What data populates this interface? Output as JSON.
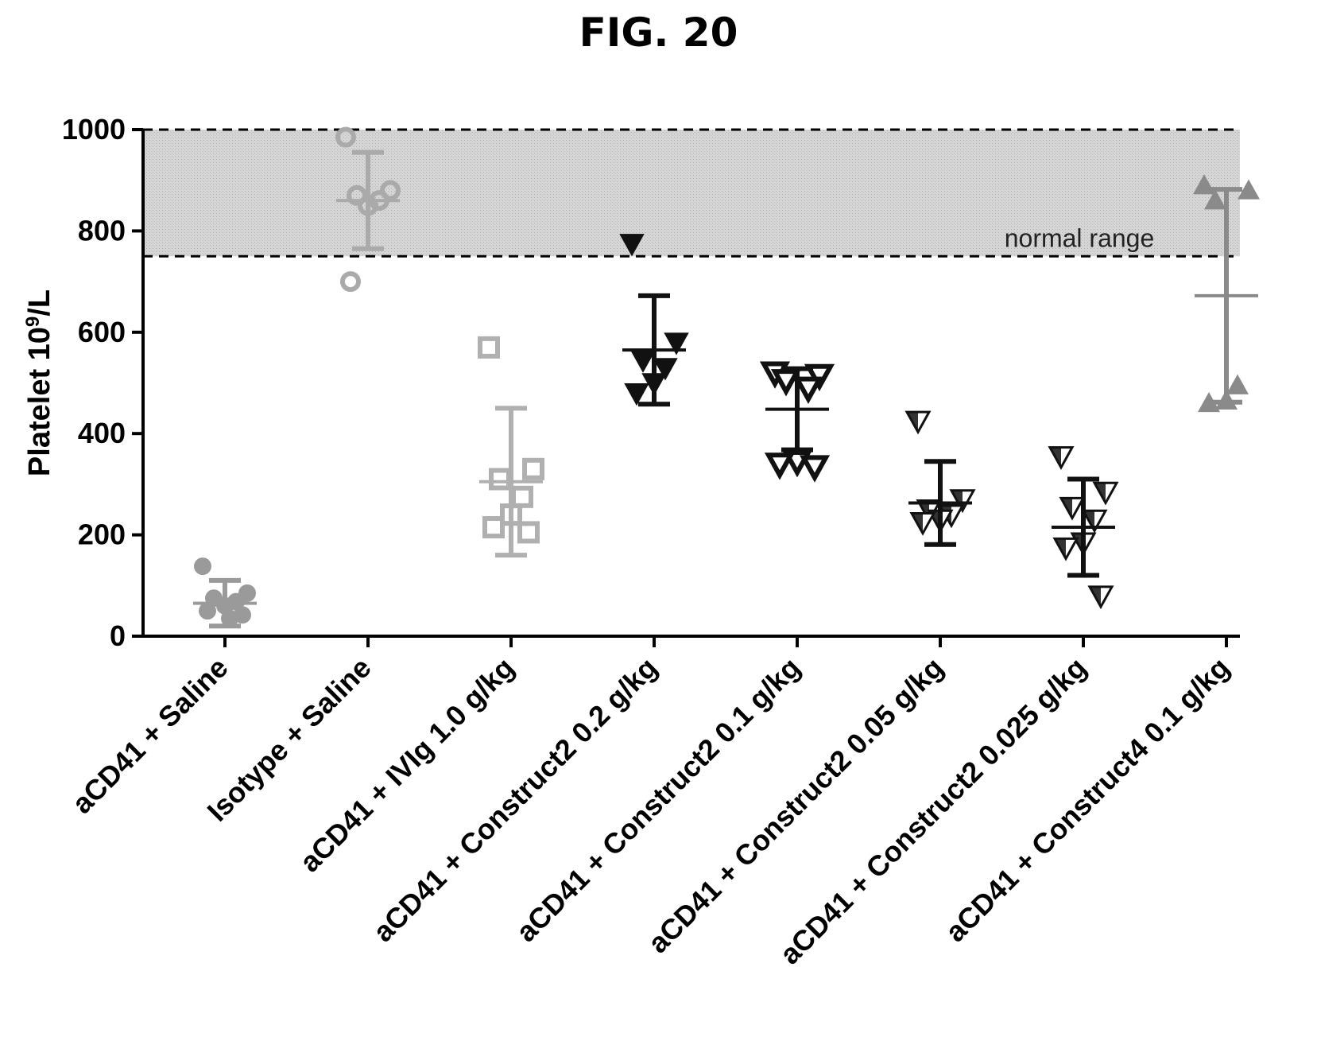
{
  "figure_title": "FIG. 20",
  "chart_data": {
    "type": "scatter",
    "title": "",
    "ylabel": "Platelet 10",
    "ylabel_sup": "9",
    "ylabel_tail": "/L",
    "xlabel": "",
    "ylim": [
      0,
      1000
    ],
    "yticks": [
      "0",
      "200",
      "400",
      "600",
      "800",
      "1000"
    ],
    "grid": false,
    "reference_band": {
      "from": 750,
      "to": 1000,
      "label": "normal range"
    },
    "categories": [
      "aCD41 + Saline",
      "Isotype + Saline",
      "aCD41 + IVIg 1.0 g/kg",
      "aCD41 + Construct2 0.2 g/kg",
      "aCD41 + Construct2 0.1 g/kg",
      "aCD41 + Construct2 0.05 g/kg",
      "aCD41 + Construct2 0.025 g/kg",
      "aCD41 + Construct4 0.1 g/kg"
    ],
    "series": [
      {
        "marker": "circle-filled",
        "color": "#9a9a9a",
        "points": [
          138,
          85,
          75,
          68,
          60,
          50,
          42,
          35
        ],
        "mean": 65,
        "sd": 45
      },
      {
        "marker": "circle-open",
        "color": "#aaaaaa",
        "points": [
          985,
          880,
          870,
          860,
          850,
          700
        ],
        "mean": 860,
        "sd": 95
      },
      {
        "marker": "square-open",
        "color": "#b0b0b0",
        "points": [
          570,
          330,
          310,
          275,
          240,
          215,
          205
        ],
        "mean": 305,
        "sd": 145
      },
      {
        "marker": "triangle-down-filled",
        "color": "#111111",
        "points": [
          775,
          580,
          545,
          530,
          500,
          480
        ],
        "mean": 565,
        "sd": 107
      },
      {
        "marker": "triangle-down-open",
        "color": "#111111",
        "points": [
          520,
          515,
          505,
          490,
          345,
          340,
          335
        ],
        "mean": 448,
        "sd": 80
      },
      {
        "marker": "triangle-down-half",
        "color": "#111111",
        "points": [
          425,
          270,
          250,
          240,
          230,
          225
        ],
        "mean": 263,
        "sd": 82
      },
      {
        "marker": "triangle-down-half",
        "color": "#111111",
        "points": [
          355,
          285,
          255,
          230,
          185,
          175,
          80
        ],
        "mean": 215,
        "sd": 95
      },
      {
        "marker": "triangle-up-filled",
        "color": "#8a8a8a",
        "points": [
          890,
          880,
          860,
          495,
          465,
          460
        ],
        "mean": 672,
        "sd": 210
      }
    ]
  }
}
